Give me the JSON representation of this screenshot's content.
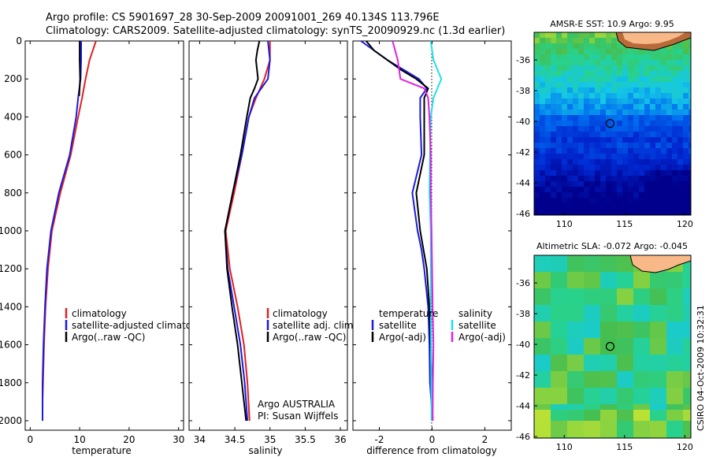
{
  "header": {
    "title_line1": "Argo profile: CS 5901697_28 30-Sep-2009 20091001_269 40.134S 113.796E",
    "title_line2": "Climatology: CARS2009. Satellite-adjusted climatology: synTS_20090929.nc (1.3d earlier)"
  },
  "colors": {
    "climatology": "#e02020",
    "satellite": "#1a1ae0",
    "argo": "#000000",
    "cyan": "#20e0e8",
    "magenta": "#e020e0",
    "land": "#f8b888",
    "coast": "#000000"
  },
  "footer": {
    "agency_text": "CSIRO 04-Oct-2009 10:32:31",
    "float_owner": "Argo AUSTRALIA",
    "pi": "PI: Susan Wijffels"
  },
  "chart_data": [
    {
      "id": "temperature",
      "type": "line",
      "xlabel": "temperature",
      "xlim": [
        -1,
        31
      ],
      "ylim": [
        2050,
        0
      ],
      "xticks": [
        0,
        10,
        20,
        30
      ],
      "yticks": [
        0,
        200,
        400,
        600,
        800,
        1000,
        1200,
        1400,
        1600,
        1800,
        2000
      ],
      "legend": [
        "climatology",
        "satellite-adjusted climatology",
        "Argo(..raw -QC)"
      ],
      "series": [
        {
          "name": "climatology",
          "color": "#e02020",
          "depth": [
            0,
            100,
            200,
            300,
            400,
            600,
            800,
            1000,
            1200,
            1400,
            1600,
            1800,
            1900
          ],
          "values": [
            13.3,
            12.0,
            11.2,
            10.5,
            9.7,
            8.2,
            6.1,
            4.4,
            3.6,
            3.1,
            2.8,
            2.6,
            2.5
          ]
        },
        {
          "name": "satellite-adjusted climatology",
          "color": "#1a1ae0",
          "depth": [
            0,
            100,
            200,
            300,
            400,
            600,
            800,
            1000,
            1200,
            1400,
            1600,
            1800,
            2000
          ],
          "values": [
            10.3,
            10.3,
            10.2,
            9.7,
            9.3,
            8.0,
            5.8,
            4.2,
            3.4,
            3.0,
            2.7,
            2.5,
            2.5
          ]
        },
        {
          "name": "Argo(..raw -QC)",
          "color": "#000000",
          "depth": [
            0,
            100,
            200,
            290
          ],
          "values": [
            10.0,
            10.0,
            10.1,
            9.9
          ]
        }
      ]
    },
    {
      "id": "salinity",
      "type": "line",
      "xlabel": "salinity",
      "xlim": [
        33.85,
        36.1
      ],
      "ylim": [
        2050,
        0
      ],
      "xticks": [
        34,
        34.5,
        35,
        35.5,
        36
      ],
      "legend": [
        "climatology",
        "satellite adj. clim.",
        "Argo(..raw -QC)"
      ],
      "series": [
        {
          "name": "climatology",
          "color": "#e02020",
          "depth": [
            0,
            100,
            200,
            300,
            400,
            600,
            800,
            1000,
            1200,
            1400,
            1600,
            1800,
            2000
          ],
          "values": [
            35.0,
            35.0,
            34.92,
            34.8,
            34.7,
            34.6,
            34.49,
            34.37,
            34.43,
            34.54,
            34.63,
            34.68,
            34.71
          ]
        },
        {
          "name": "satellite adj. clim.",
          "color": "#1a1ae0",
          "depth": [
            0,
            100,
            200,
            300,
            400,
            600,
            800,
            1000,
            1200,
            1400,
            1600,
            1800,
            2000
          ],
          "values": [
            34.97,
            35.0,
            34.97,
            34.78,
            34.7,
            34.6,
            34.47,
            34.36,
            34.4,
            34.49,
            34.58,
            34.64,
            34.68
          ]
        },
        {
          "name": "Argo(..raw -QC)",
          "color": "#000000",
          "depth": [
            0,
            50,
            100,
            200,
            250,
            300,
            400,
            600,
            800,
            1000,
            1200,
            1400,
            1600,
            1800,
            2000
          ],
          "values": [
            34.85,
            34.82,
            34.8,
            34.83,
            34.78,
            34.72,
            34.67,
            34.58,
            34.47,
            34.36,
            34.39,
            34.46,
            34.54,
            34.6,
            34.66
          ]
        }
      ]
    },
    {
      "id": "difference",
      "type": "line",
      "xlabel": "difference from climatology",
      "xlim": [
        -3.0,
        3.0
      ],
      "ylim": [
        2050,
        0
      ],
      "xticks": [
        -2,
        0,
        2
      ],
      "legend_temperature": [
        "temperature",
        "satellite",
        "Argo(-adj)"
      ],
      "legend_salinity": [
        "salinity",
        "satellite",
        "Argo(-adj)"
      ],
      "series": [
        {
          "name": "temperature satellite",
          "color": "#1a1ae0",
          "depth": [
            0,
            50,
            100,
            150,
            200,
            250,
            300,
            400,
            600,
            800,
            900,
            1000,
            1100,
            1200,
            1400,
            1600,
            1800,
            2000
          ],
          "values": [
            -2.7,
            -2.2,
            -1.7,
            -1.1,
            -0.5,
            -0.2,
            -0.45,
            -0.45,
            -0.4,
            -0.75,
            -0.65,
            -0.55,
            -0.4,
            -0.3,
            -0.15,
            -0.1,
            -0.08,
            0.02
          ]
        },
        {
          "name": "temperature Argo(-adj)",
          "color": "#000000",
          "depth": [
            0,
            50,
            100,
            150,
            200,
            250,
            300,
            400,
            600,
            800,
            1000,
            1200,
            1400,
            1600,
            1800,
            2000
          ],
          "values": [
            -2.5,
            -2.2,
            -1.7,
            -1.2,
            -0.6,
            -0.15,
            -0.3,
            -0.3,
            -0.3,
            -0.6,
            -0.45,
            -0.2,
            -0.1,
            -0.05,
            0.0,
            0.02
          ]
        },
        {
          "name": "salinity satellite",
          "color": "#20e0e8",
          "depth": [
            0,
            100,
            150,
            200,
            250,
            300,
            400,
            600,
            800,
            1000,
            1200,
            1400,
            1600,
            1800,
            2000
          ],
          "values": [
            -0.05,
            0.05,
            0.2,
            0.35,
            0.2,
            0.05,
            -0.05,
            -0.08,
            -0.1,
            -0.05,
            -0.05,
            -0.05,
            -0.04,
            -0.03,
            -0.02
          ]
        },
        {
          "name": "salinity Argo(-adj)",
          "color": "#e020e0",
          "depth": [
            0,
            100,
            200,
            250,
            300,
            400,
            600,
            800,
            1000,
            1200,
            1400,
            1600,
            1800,
            2000
          ],
          "values": [
            -1.5,
            -1.3,
            -1.2,
            -0.3,
            -0.15,
            -0.1,
            -0.05,
            -0.05,
            -0.02,
            0.0,
            0.02,
            0.05,
            0.03,
            0.02
          ]
        }
      ]
    },
    {
      "id": "sst_map",
      "type": "heatmap",
      "title": "AMSR-E SST: 10.9  Argo: 9.95",
      "xlim": [
        107.5,
        120.5
      ],
      "ylim": [
        -46.1,
        -34.2
      ],
      "xticks": [
        110,
        115,
        120
      ],
      "yticks": [
        -36,
        -38,
        -40,
        -42,
        -44,
        -46
      ],
      "float_position": {
        "lon": 113.8,
        "lat": -40.13
      }
    },
    {
      "id": "sla_map",
      "type": "heatmap",
      "title": "Altimetric SLA: -0.072  Argo: -0.045",
      "xlim": [
        107.5,
        120.5
      ],
      "ylim": [
        -46.1,
        -34.2
      ],
      "xticks": [
        110,
        115,
        120
      ],
      "yticks": [
        -36,
        -38,
        -40,
        -42,
        -44,
        -46
      ],
      "float_position": {
        "lon": 113.8,
        "lat": -40.13
      }
    }
  ]
}
